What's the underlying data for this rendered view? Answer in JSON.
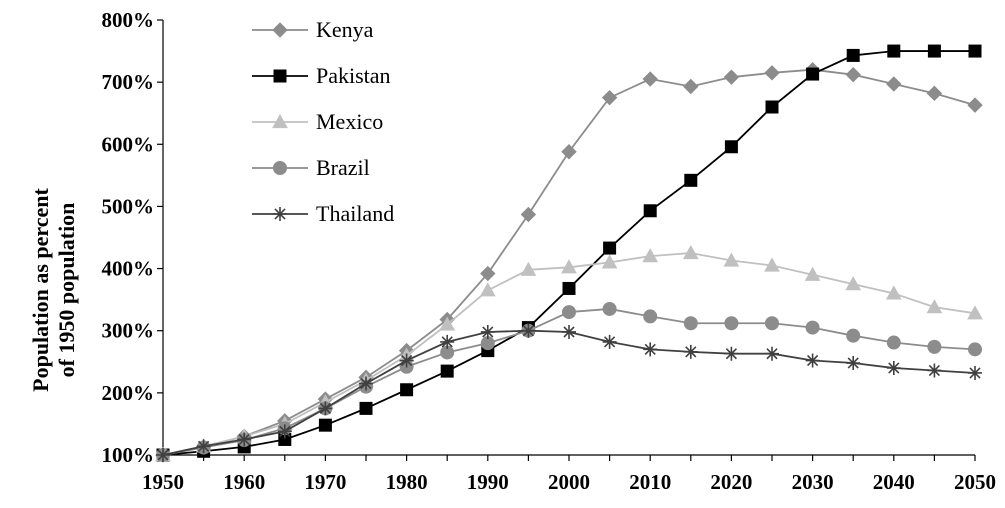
{
  "chart_data": {
    "type": "line",
    "ylabel_line1": "Population as percent",
    "ylabel_line2": "of 1950 population",
    "ylim": [
      100,
      800
    ],
    "yticks": [
      100,
      200,
      300,
      400,
      500,
      600,
      700,
      800
    ],
    "ytick_labels": [
      "100%",
      "200%",
      "300%",
      "400%",
      "500%",
      "600%",
      "700%",
      "800%"
    ],
    "xlim": [
      1950,
      2050
    ],
    "xticks": [
      1950,
      1960,
      1970,
      1980,
      1990,
      2000,
      2010,
      2020,
      2030,
      2040,
      2050
    ],
    "xtick_labels": [
      "1950",
      "1960",
      "1970",
      "1980",
      "1990",
      "2000",
      "2010",
      "2020",
      "2030",
      "2040",
      "2050"
    ],
    "grid": false,
    "legend_position": "top-left",
    "x": [
      1950,
      1955,
      1960,
      1965,
      1970,
      1975,
      1980,
      1985,
      1990,
      1995,
      2000,
      2005,
      2010,
      2015,
      2020,
      2025,
      2030,
      2035,
      2040,
      2045,
      2050
    ],
    "series": [
      {
        "name": "Kenya",
        "marker": "diamond",
        "color": "#8c8c8c",
        "values": [
          100,
          113,
          130,
          155,
          190,
          225,
          268,
          318,
          392,
          487,
          588,
          675,
          705,
          693,
          708,
          715,
          720,
          712,
          697,
          682,
          663
        ]
      },
      {
        "name": "Pakistan",
        "marker": "square",
        "color": "#000000",
        "values": [
          100,
          106,
          113,
          125,
          148,
          175,
          205,
          235,
          268,
          305,
          368,
          433,
          493,
          542,
          596,
          660,
          713,
          743,
          750,
          750,
          750
        ]
      },
      {
        "name": "Mexico",
        "marker": "triangle",
        "color": "#c0c0c0",
        "values": [
          100,
          114,
          130,
          150,
          185,
          220,
          260,
          310,
          365,
          398,
          402,
          410,
          420,
          425,
          413,
          405,
          390,
          375,
          360,
          338,
          328
        ]
      },
      {
        "name": "Brazil",
        "marker": "circle",
        "color": "#8c8c8c",
        "values": [
          100,
          112,
          124,
          143,
          175,
          210,
          242,
          265,
          280,
          300,
          330,
          335,
          323,
          312,
          312,
          312,
          305,
          292,
          281,
          274,
          270
        ]
      },
      {
        "name": "Thailand",
        "marker": "star",
        "color": "#404040",
        "values": [
          100,
          114,
          125,
          138,
          175,
          215,
          252,
          282,
          298,
          300,
          298,
          282,
          270,
          266,
          263,
          263,
          252,
          248,
          240,
          236,
          232
        ]
      }
    ]
  }
}
